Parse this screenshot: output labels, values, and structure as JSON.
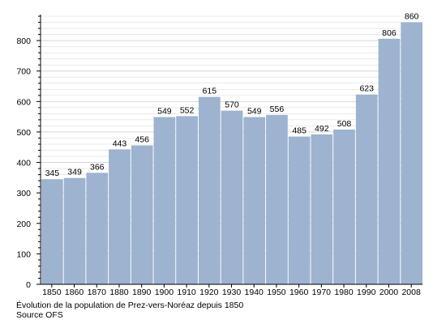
{
  "caption": {
    "line1": "Évolution de la population de Prez-vers-Noréaz depuis 1850",
    "line2": "Source OFS"
  },
  "colors": {
    "bar": "#9db3cf",
    "grid": "#d6d6d6",
    "axis": "#000000"
  },
  "chart_data": {
    "type": "bar",
    "title": "",
    "xlabel": "",
    "ylabel": "",
    "categories": [
      "1850",
      "1860",
      "1870",
      "1880",
      "1890",
      "1900",
      "1910",
      "1920",
      "1930",
      "1940",
      "1950",
      "1960",
      "1970",
      "1980",
      "1990",
      "2000",
      "2008"
    ],
    "values": [
      345,
      349,
      366,
      443,
      456,
      549,
      552,
      615,
      570,
      549,
      556,
      485,
      492,
      508,
      623,
      806,
      860
    ],
    "ylim": [
      0,
      880
    ],
    "yticks": [
      0,
      100,
      200,
      300,
      400,
      500,
      600,
      700,
      800
    ],
    "grid": true,
    "data_labels": true,
    "legend": "none"
  }
}
